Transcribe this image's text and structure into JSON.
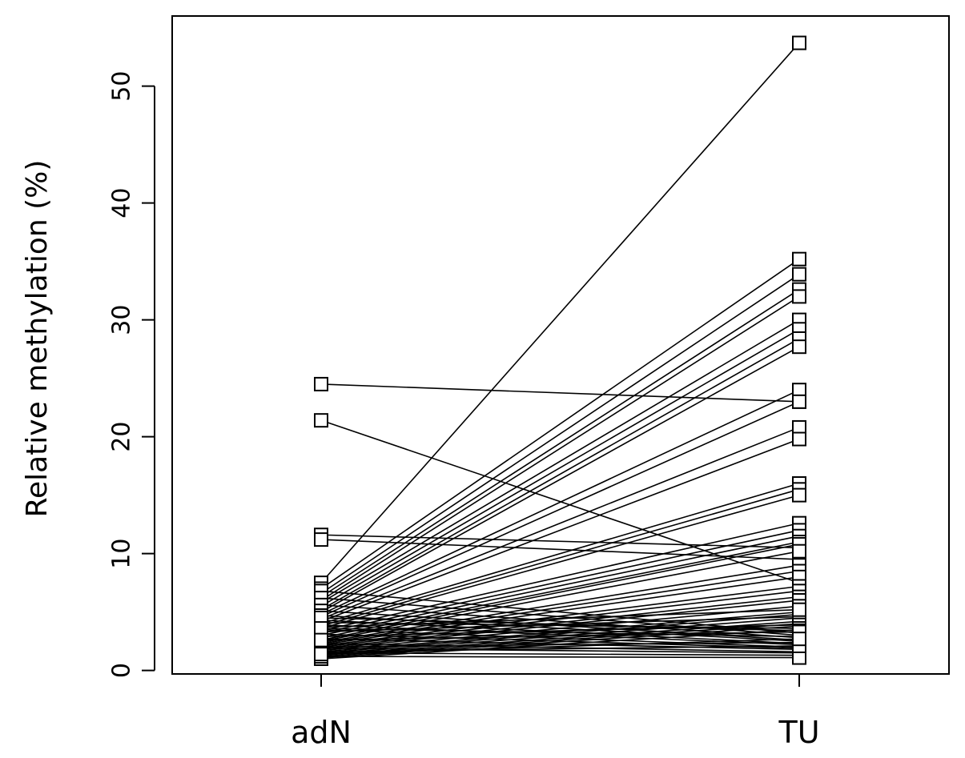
{
  "chart_data": {
    "type": "line",
    "title": "",
    "xlabel": "",
    "ylabel": "Relative methylation (%)",
    "categories": [
      "adN",
      "TU"
    ],
    "yticks": [
      "0",
      "10",
      "20",
      "30",
      "40",
      "50"
    ],
    "ylim": [
      -0.3,
      56
    ],
    "grid": false,
    "legend": "none",
    "line_color": "#000000",
    "pairs": [
      [
        24.5,
        23.0
      ],
      [
        21.4,
        7.5
      ],
      [
        11.6,
        10.5
      ],
      [
        11.2,
        9.5
      ],
      [
        7.5,
        53.7
      ],
      [
        7.0,
        35.2
      ],
      [
        6.6,
        33.9
      ],
      [
        6.3,
        32.6
      ],
      [
        6.0,
        32.0
      ],
      [
        5.8,
        30.0
      ],
      [
        5.5,
        29.2
      ],
      [
        5.2,
        28.4
      ],
      [
        5.0,
        27.7
      ],
      [
        4.8,
        24.0
      ],
      [
        4.6,
        23.0
      ],
      [
        4.4,
        20.8
      ],
      [
        4.2,
        19.8
      ],
      [
        4.0,
        16.0
      ],
      [
        3.8,
        15.5
      ],
      [
        3.6,
        15.0
      ],
      [
        3.4,
        12.6
      ],
      [
        3.2,
        12.0
      ],
      [
        3.0,
        11.5
      ],
      [
        2.8,
        11.0
      ],
      [
        2.6,
        10.8
      ],
      [
        2.5,
        10.2
      ],
      [
        2.4,
        9.0
      ],
      [
        2.3,
        8.5
      ],
      [
        2.2,
        8.0
      ],
      [
        2.1,
        7.2
      ],
      [
        2.0,
        6.8
      ],
      [
        1.9,
        6.3
      ],
      [
        1.8,
        6.0
      ],
      [
        1.7,
        5.5
      ],
      [
        1.6,
        5.0
      ],
      [
        1.5,
        4.8
      ],
      [
        1.4,
        4.5
      ],
      [
        1.3,
        4.2
      ],
      [
        1.2,
        4.0
      ],
      [
        1.1,
        3.8
      ],
      [
        1.0,
        3.5
      ],
      [
        6.8,
        3.2
      ],
      [
        6.2,
        3.0
      ],
      [
        5.6,
        2.8
      ],
      [
        5.1,
        2.6
      ],
      [
        4.7,
        2.5
      ],
      [
        4.3,
        2.3
      ],
      [
        3.9,
        2.2
      ],
      [
        3.5,
        2.0
      ],
      [
        3.1,
        1.9
      ],
      [
        2.7,
        1.8
      ],
      [
        2.3,
        1.6
      ],
      [
        1.9,
        1.5
      ],
      [
        1.5,
        1.3
      ],
      [
        1.2,
        1.1
      ],
      [
        3.3,
        4.6
      ],
      [
        2.9,
        3.9
      ],
      [
        4.1,
        3.6
      ],
      [
        3.7,
        5.2
      ],
      [
        2.0,
        2.4
      ],
      [
        1.6,
        2.1
      ],
      [
        4.5,
        3.4
      ],
      [
        3.6,
        2.9
      ],
      [
        2.6,
        3.3
      ],
      [
        1.4,
        2.7
      ]
    ]
  }
}
